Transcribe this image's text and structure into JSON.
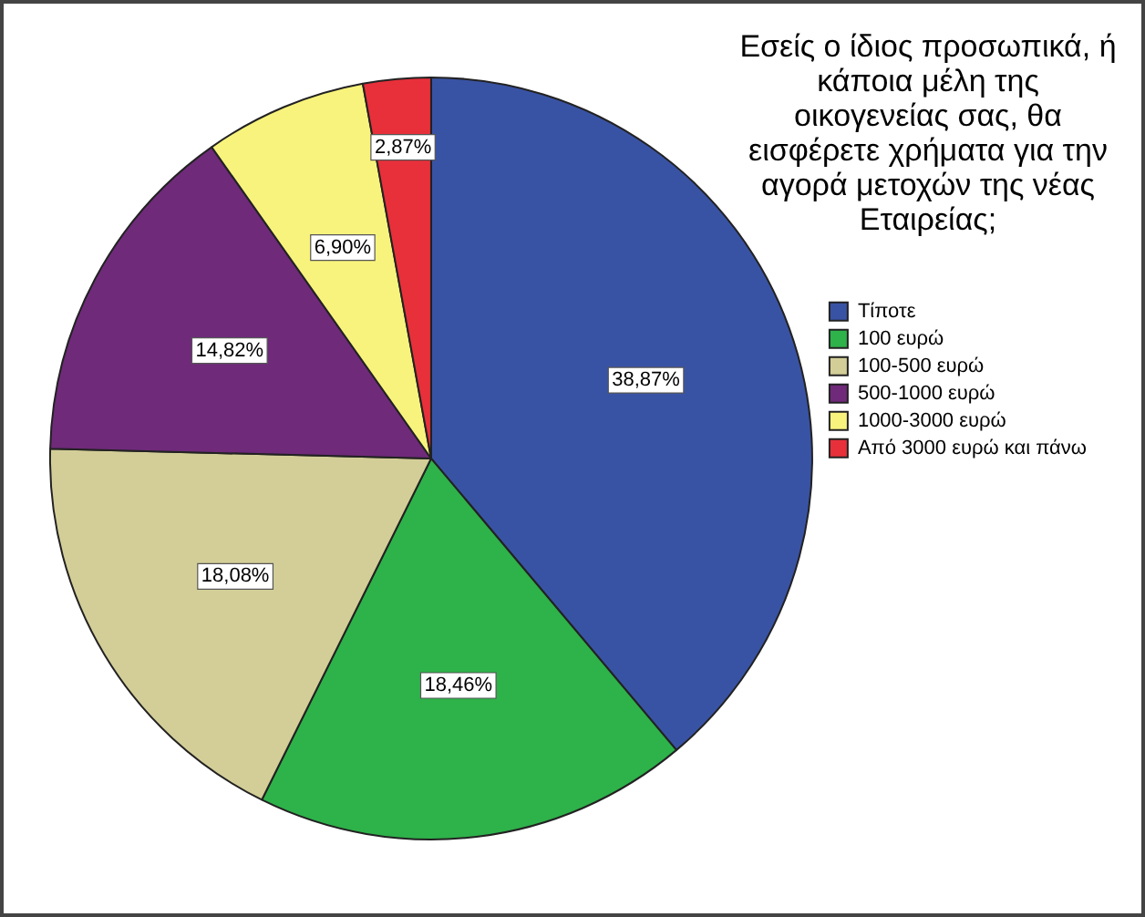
{
  "chart_data": {
    "type": "pie",
    "title": "Εσείς ο ίδιος προσωπικά,  ή κάποια μέλη της οικογενείας σας, θα εισφέρετε χρήματα για την αγορά μετοχών της νέας Εταιρείας;",
    "categories": [
      "Τίποτε",
      "100 ευρώ",
      "100-500 ευρώ",
      "500-1000 ευρώ",
      "1000-3000 ευρώ",
      "Από 3000 ευρώ και πάνω"
    ],
    "values": [
      38.87,
      18.46,
      18.08,
      14.82,
      6.9,
      2.87
    ],
    "colors": [
      "#3953a4",
      "#2eb24a",
      "#d3ce97",
      "#6f2a7a",
      "#f8f37c",
      "#e8303a"
    ],
    "value_labels": [
      "38,87%",
      "18,46%",
      "18,08%",
      "14,82%",
      "6,90%",
      "2,87%"
    ],
    "legend": "right"
  }
}
